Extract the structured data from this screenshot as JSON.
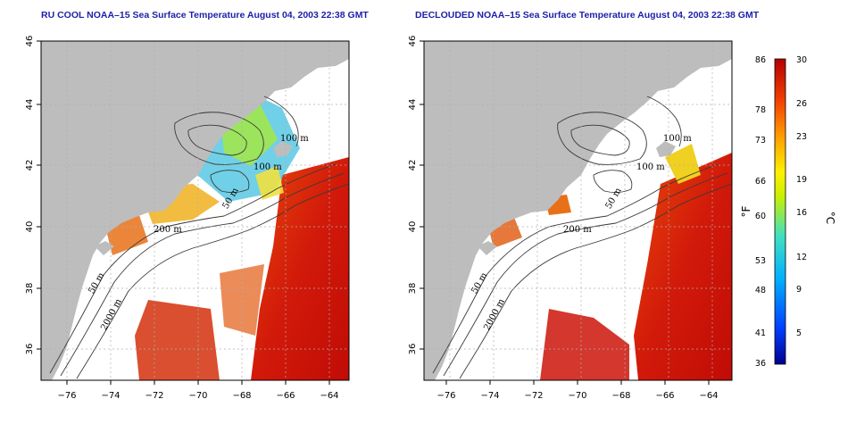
{
  "panels": [
    {
      "title": "RU COOL NOAA–15 Sea Surface Temperature August 04, 2003 22:38 GMT",
      "depth_labels": [
        "100 m",
        "100 m",
        "50 m",
        "200 m",
        "50 m",
        "2000 m"
      ]
    },
    {
      "title": "DECLOUDED NOAA–15 Sea Surface Temperature August 04, 2003 22:38 GMT",
      "depth_labels": [
        "100 m",
        "100 m",
        "50 m",
        "200 m",
        "50 m",
        "2000 m"
      ]
    }
  ],
  "axes": {
    "lon_ticks": [
      "−76",
      "−74",
      "−72",
      "−70",
      "−68",
      "−66",
      "−64"
    ],
    "lat_ticks": [
      "46",
      "44",
      "42",
      "40",
      "38",
      "36"
    ]
  },
  "colorbar": {
    "fahrenheit_labels": [
      "86",
      "78",
      "73",
      "66",
      "60",
      "53",
      "48",
      "41",
      "36"
    ],
    "celsius_labels": [
      "30",
      "26",
      "23",
      "19",
      "16",
      "12",
      "9",
      "5"
    ],
    "fahrenheit_unit": "°F",
    "celsius_unit": "°C",
    "range_c": [
      2,
      30
    ]
  },
  "colors": {
    "land": "#bdbdbd",
    "title": "#1f1fa8",
    "warm": "#d21a0a",
    "cool": "#1e90ff"
  }
}
